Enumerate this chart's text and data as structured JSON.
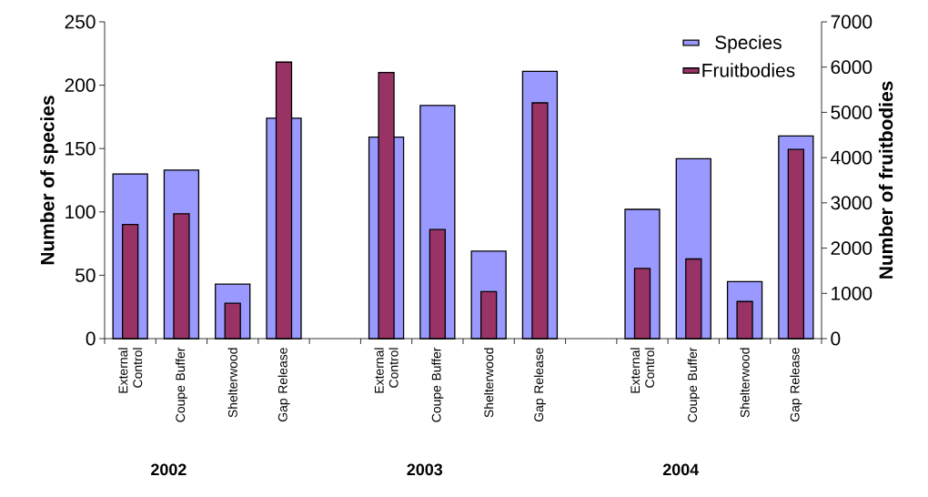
{
  "chart_data": {
    "type": "bar",
    "categories": [
      "External Control",
      "Coupe Buffer",
      "Shelterwood",
      "Gap Release",
      null,
      "External Control",
      "Coupe Buffer",
      "Shelterwood",
      "Gap Release",
      null,
      "External Control",
      "Coupe Buffer",
      "Shelterwood",
      "Gap Release"
    ],
    "series": [
      {
        "name": "Species",
        "color": "#9999ff",
        "values": [
          130,
          133,
          43,
          174,
          null,
          159,
          184,
          69,
          211,
          null,
          102,
          142,
          45,
          160
        ]
      },
      {
        "name": "Fruitbodies",
        "color": "#993366",
        "axis": "y2",
        "values": [
          2520,
          2760,
          780,
          6110,
          null,
          5880,
          2410,
          1040,
          5210,
          null,
          1550,
          1760,
          820,
          4180
        ]
      }
    ],
    "ylabel": "Number of species",
    "y2label": "Number of fruitbodies",
    "ylim": [
      0,
      250
    ],
    "yticks": [
      0,
      50,
      100,
      150,
      200,
      250
    ],
    "y2lim": [
      0,
      7000
    ],
    "y2ticks": [
      0,
      1000,
      2000,
      3000,
      4000,
      5000,
      6000,
      7000
    ],
    "legend": "top right",
    "annotations": [
      "2002",
      "2003",
      "2004"
    ]
  }
}
